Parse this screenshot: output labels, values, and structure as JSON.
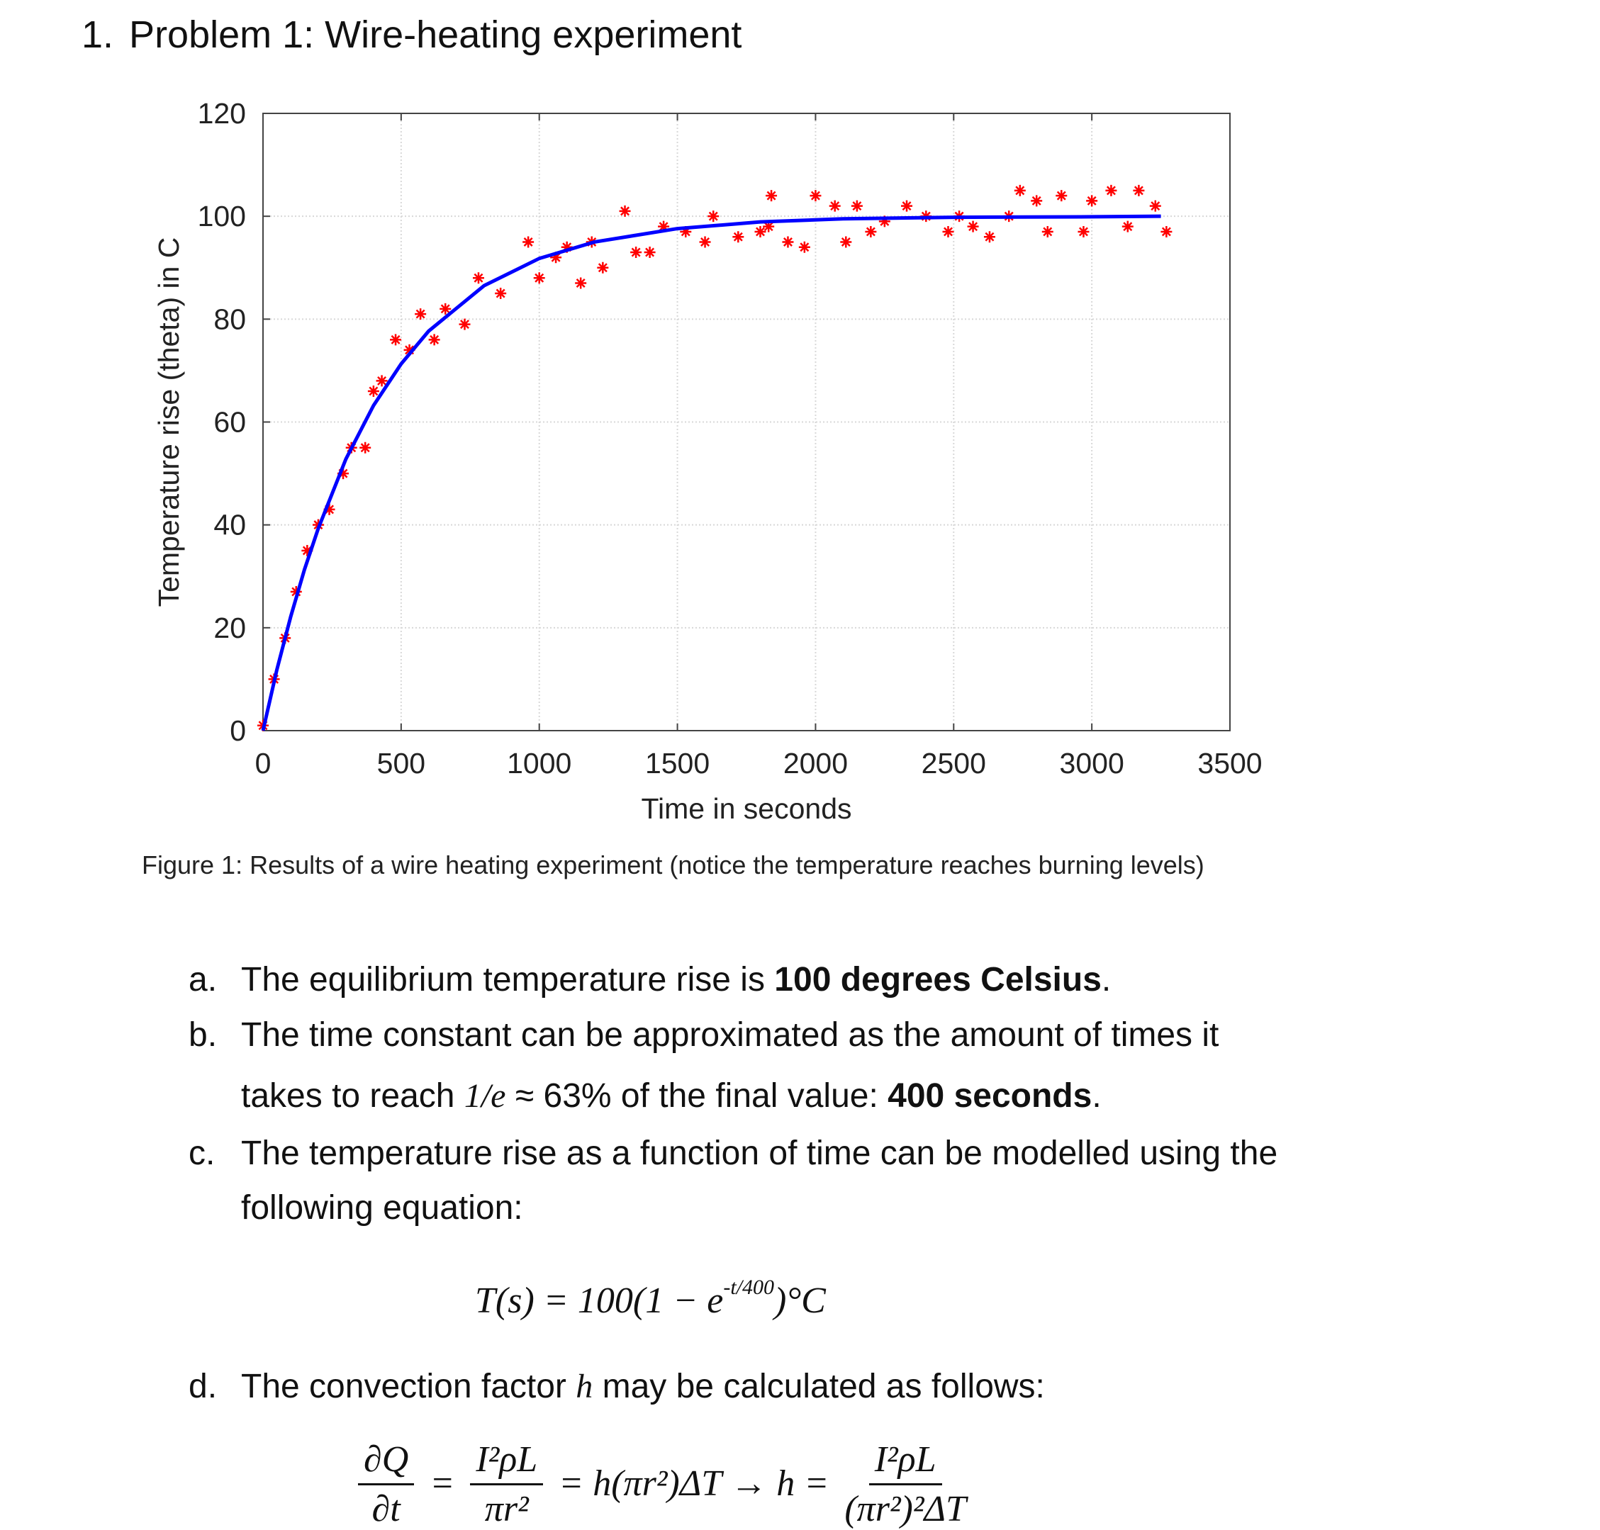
{
  "heading": {
    "number": "1.",
    "title": "Problem 1: Wire-heating experiment"
  },
  "chart_data": {
    "type": "scatter",
    "xlabel": "Time in seconds",
    "ylabel": "Temperature rise (theta) in C",
    "xlim": [
      0,
      3500
    ],
    "ylim": [
      0,
      120
    ],
    "xticks": [
      0,
      500,
      1000,
      1500,
      2000,
      2500,
      3000,
      3500
    ],
    "yticks": [
      0,
      20,
      40,
      60,
      80,
      100,
      120
    ],
    "grid": true,
    "series": [
      {
        "color": "#ff0000",
        "marker": "asterisk",
        "x": [
          0,
          40,
          80,
          120,
          160,
          200,
          240,
          290,
          320,
          370,
          400,
          430,
          480,
          530,
          570,
          620,
          660,
          730,
          780,
          860,
          960,
          1000,
          1060,
          1100,
          1150,
          1190,
          1230,
          1310,
          1350,
          1400,
          1450,
          1530,
          1600,
          1630,
          1720,
          1800,
          1830,
          1840,
          1900,
          1960,
          2000,
          2070,
          2110,
          2150,
          2200,
          2250,
          2330,
          2400,
          2480,
          2520,
          2570,
          2630,
          2700,
          2740,
          2800,
          2840,
          2890,
          2970,
          3000,
          3070,
          3130,
          3170,
          3230,
          3270
        ],
        "values": [
          1,
          10,
          18,
          27,
          35,
          40,
          43,
          50,
          55,
          55,
          66,
          68,
          76,
          74,
          81,
          76,
          82,
          79,
          88,
          85,
          95,
          88,
          92,
          94,
          87,
          95,
          90,
          101,
          93,
          93,
          98,
          97,
          95,
          100,
          96,
          97,
          98,
          104,
          95,
          94,
          104,
          102,
          95,
          102,
          97,
          99,
          102,
          100,
          97,
          100,
          98,
          96,
          100,
          105,
          103,
          97,
          104,
          97,
          103,
          105,
          98,
          105,
          102,
          97
        ]
      },
      {
        "color": "#0000ff",
        "line": true,
        "x": [
          0,
          50,
          100,
          150,
          200,
          300,
          400,
          500,
          600,
          800,
          1000,
          1200,
          1500,
          1800,
          2100,
          2500,
          3000,
          3250
        ],
        "values": [
          0,
          11.8,
          22.1,
          31.3,
          39.3,
          52.8,
          63.2,
          71.3,
          77.7,
          86.5,
          91.8,
          95.0,
          97.6,
          98.9,
          99.5,
          99.8,
          99.9,
          100
        ]
      }
    ]
  },
  "caption": "Figure 1: Results of a wire heating experiment (notice the temperature reaches burning levels)",
  "items": [
    {
      "marker": "a.",
      "lines": [
        [
          {
            "text": "The equilibrium temperature rise is "
          },
          {
            "text": "100 degrees Celsius",
            "bold": true
          },
          {
            "text": "."
          }
        ]
      ]
    },
    {
      "marker": "b.",
      "lines": [
        [
          {
            "text": "The time constant can be approximated as the amount of times it"
          }
        ],
        [
          {
            "text": "takes to reach "
          },
          {
            "text": "1/e",
            "math": true
          },
          {
            "text": " ≈ 63% of the final value: "
          },
          {
            "text": "400 seconds",
            "bold": true
          },
          {
            "text": "."
          }
        ]
      ]
    },
    {
      "marker": "c.",
      "lines": [
        [
          {
            "text": "The temperature rise as a function of time can be modelled using the"
          }
        ],
        [
          {
            "text": "following equation:"
          }
        ]
      ]
    },
    {
      "marker": "d.",
      "lines": [
        [
          {
            "text": "The convection factor "
          },
          {
            "text": "h",
            "math": true
          },
          {
            "text": " may be calculated as follows:"
          }
        ]
      ]
    }
  ],
  "equation_t": [
    {
      "text": "T(s) = 100(1 − e",
      "math": true
    },
    {
      "text": "-t/400",
      "math": true,
      "sup": true
    },
    {
      "text": ")°C",
      "math": true
    }
  ],
  "equation_h": [
    {
      "num": "∂Q",
      "den": "∂t"
    },
    {
      "text": "="
    },
    {
      "num": "I²ρL",
      "den": "πr²"
    },
    {
      "text": "= h(πr²)ΔT → h ="
    },
    {
      "num": "I²ρL",
      "den": "(πr²)²ΔT"
    }
  ]
}
